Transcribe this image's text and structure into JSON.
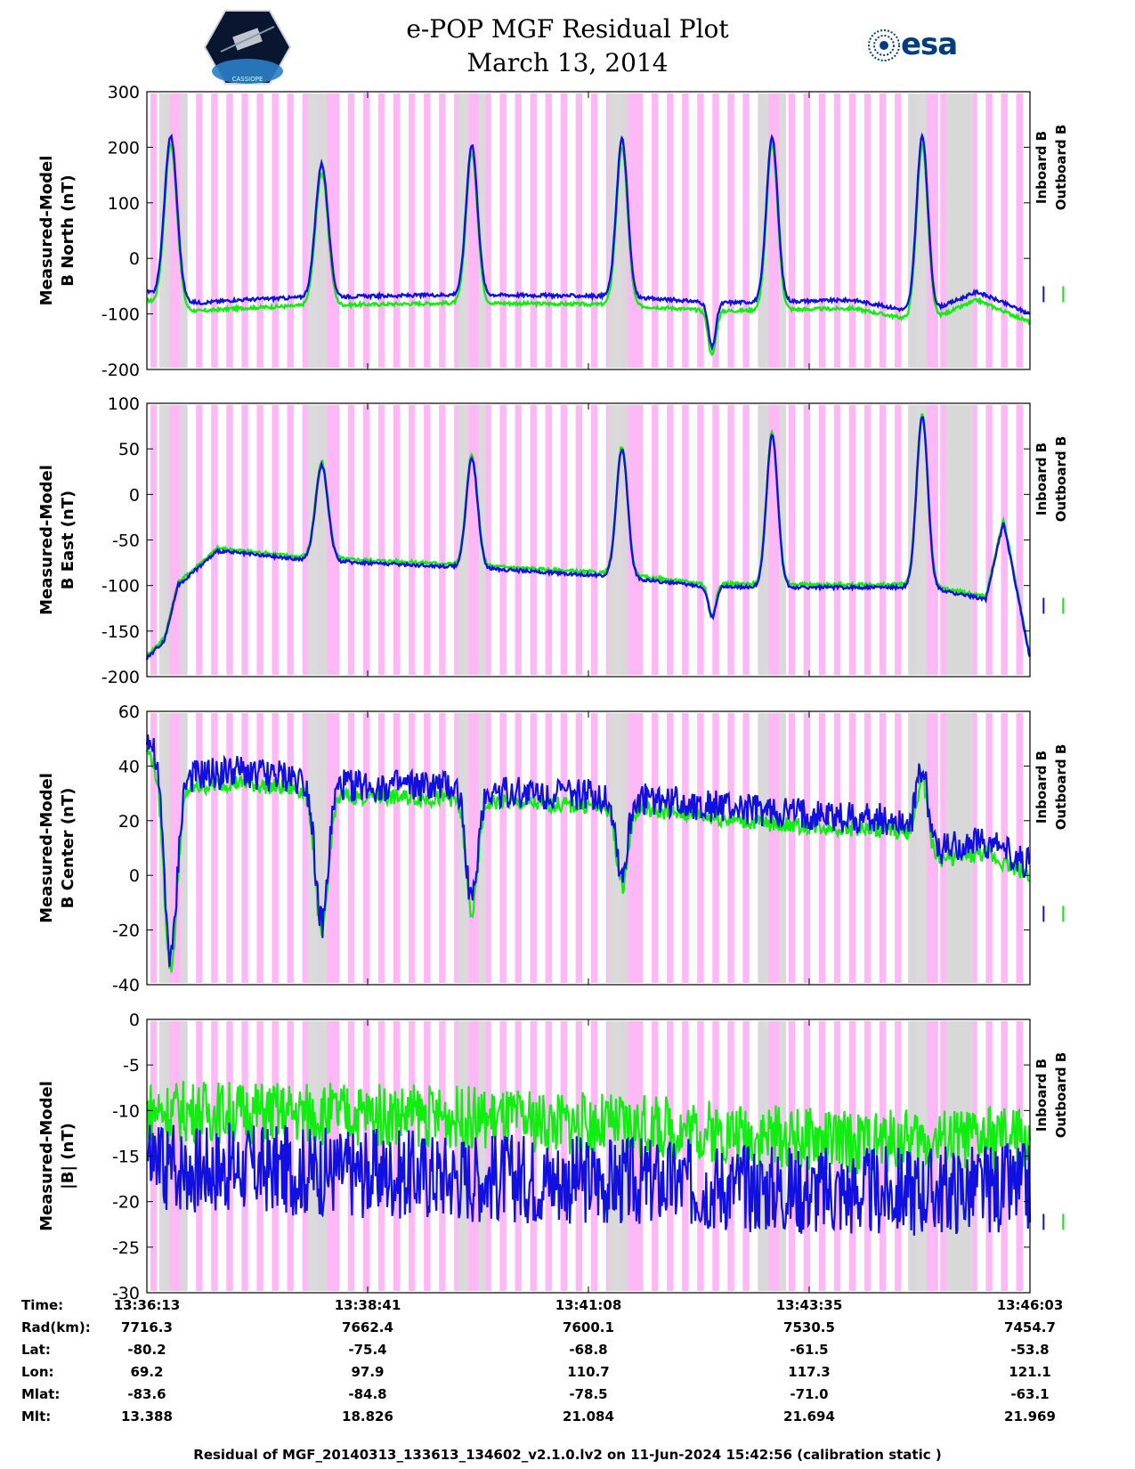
{
  "title": {
    "line1": "e-POP MGF Residual Plot",
    "line2": "March 13, 2014"
  },
  "logos": {
    "left": "CASSIOPE",
    "right": "esa"
  },
  "legend": {
    "inboard": "Inboard B",
    "outboard": "Outboard B",
    "inboard_color": "#1010e0",
    "outboard_color": "#10ee10",
    "mark": "|"
  },
  "colors": {
    "pink": "#ffb8f6",
    "gray": "#d8d8d8"
  },
  "chart_data": [
    {
      "type": "line",
      "ylabel": [
        "Measured-Model",
        "B North (nT)"
      ],
      "ylim": [
        -200,
        300
      ],
      "yticks": [
        300,
        200,
        100,
        0,
        -100,
        -200
      ],
      "series": [
        {
          "name": "Inboard B",
          "baseline": [
            [
              0,
              -60
            ],
            [
              0.02,
              -75
            ],
            [
              0.06,
              -80
            ],
            [
              0.1,
              -75
            ],
            [
              0.18,
              -70
            ],
            [
              0.36,
              -65
            ],
            [
              0.52,
              -68
            ],
            [
              0.6,
              -75
            ],
            [
              0.64,
              -80
            ],
            [
              0.7,
              -78
            ],
            [
              0.8,
              -75
            ],
            [
              0.88,
              -100
            ],
            [
              0.94,
              -60
            ],
            [
              1.0,
              -100
            ]
          ],
          "spikes": [
            [
              0.027,
              220,
              0.01
            ],
            [
              0.198,
              170,
              0.01
            ],
            [
              0.368,
              205,
              0.009
            ],
            [
              0.538,
              215,
              0.009
            ],
            [
              0.708,
              220,
              0.009
            ],
            [
              0.878,
              220,
              0.009
            ]
          ],
          "dips": [
            [
              0.64,
              -160,
              0.006
            ]
          ]
        },
        {
          "name": "Outboard B",
          "offset": -15
        }
      ]
    },
    {
      "type": "line",
      "ylabel": [
        "Measured-Model",
        "B East (nT)"
      ],
      "ylim": [
        -200,
        100
      ],
      "yticks": [
        100,
        50,
        0,
        -50,
        -100,
        -150,
        -200
      ],
      "series": [
        {
          "name": "Inboard B",
          "baseline": [
            [
              0,
              -180
            ],
            [
              0.02,
              -160
            ],
            [
              0.035,
              -100
            ],
            [
              0.08,
              -62
            ],
            [
              0.18,
              -72
            ],
            [
              0.36,
              -80
            ],
            [
              0.53,
              -90
            ],
            [
              0.62,
              -100
            ],
            [
              0.7,
              -102
            ],
            [
              0.88,
              -102
            ],
            [
              0.95,
              -115
            ],
            [
              0.97,
              -30
            ],
            [
              1.0,
              -180
            ]
          ],
          "spikes": [
            [
              0.198,
              32,
              0.01
            ],
            [
              0.368,
              40,
              0.009
            ],
            [
              0.538,
              50,
              0.009
            ],
            [
              0.708,
              65,
              0.009
            ],
            [
              0.878,
              85,
              0.009
            ]
          ],
          "dips": [
            [
              0.64,
              -135,
              0.006
            ]
          ]
        },
        {
          "name": "Outboard B",
          "offset": 3
        }
      ]
    },
    {
      "type": "line",
      "ylabel": [
        "Measured-Model",
        "B Center (nT)"
      ],
      "ylim": [
        -40,
        60
      ],
      "yticks": [
        60,
        40,
        20,
        0,
        -20,
        -40
      ],
      "series": [
        {
          "name": "Inboard B",
          "baseline": [
            [
              0,
              50
            ],
            [
              0.02,
              40
            ],
            [
              0.05,
              36
            ],
            [
              0.1,
              38
            ],
            [
              0.18,
              35
            ],
            [
              0.21,
              33
            ],
            [
              0.36,
              32
            ],
            [
              0.38,
              31
            ],
            [
              0.53,
              29
            ],
            [
              0.6,
              27
            ],
            [
              0.7,
              23
            ],
            [
              0.86,
              20
            ],
            [
              0.9,
              10
            ],
            [
              0.95,
              12
            ],
            [
              1.0,
              4
            ]
          ],
          "spikes": [
            [
              0.878,
              40,
              0.008
            ]
          ],
          "dips": [
            [
              0.027,
              -30,
              0.01
            ],
            [
              0.198,
              -18,
              0.01
            ],
            [
              0.368,
              -10,
              0.009
            ],
            [
              0.538,
              0,
              0.009
            ]
          ],
          "band": 6
        },
        {
          "name": "Outboard B",
          "offset": -4,
          "band": 3
        }
      ]
    },
    {
      "type": "line",
      "ylabel": [
        "Measured-Model",
        "|B| (nT)"
      ],
      "ylim": [
        -30,
        0
      ],
      "yticks": [
        0,
        -5,
        -10,
        -15,
        -20,
        -25,
        -30
      ],
      "series": [
        {
          "name": "Outboard B",
          "baseline": [
            [
              0,
              -10
            ],
            [
              0.3,
              -10.5
            ],
            [
              0.6,
              -12
            ],
            [
              0.8,
              -13.5
            ],
            [
              1.0,
              -13
            ]
          ],
          "band": 3.5
        },
        {
          "name": "Inboard B",
          "baseline": [
            [
              0,
              -16
            ],
            [
              0.3,
              -17
            ],
            [
              0.6,
              -18
            ],
            [
              0.8,
              -19
            ],
            [
              1.0,
              -18.5
            ]
          ],
          "band": 5
        }
      ]
    }
  ],
  "ephemeris": {
    "labels": [
      "Time:",
      "Rad(km):",
      "Lat:",
      "Lon:",
      "Mlat:",
      "Mlt:"
    ],
    "columns": [
      [
        "13:36:13",
        "7716.3",
        "-80.2",
        "69.2",
        "-83.6",
        "13.388"
      ],
      [
        "13:38:41",
        "7662.4",
        "-75.4",
        "97.9",
        "-84.8",
        "18.826"
      ],
      [
        "13:41:08",
        "7600.1",
        "-68.8",
        "110.7",
        "-78.5",
        "21.084"
      ],
      [
        "13:43:35",
        "7530.5",
        "-61.5",
        "117.3",
        "-71.0",
        "21.694"
      ],
      [
        "13:46:03",
        "7454.7",
        "-53.8",
        "121.1",
        "-63.1",
        "21.969"
      ]
    ]
  },
  "footer": "Residual of MGF_20140313_133613_134602_v2.1.0.lv2 on 11-Jun-2024 15:42:56 (calibration static )"
}
